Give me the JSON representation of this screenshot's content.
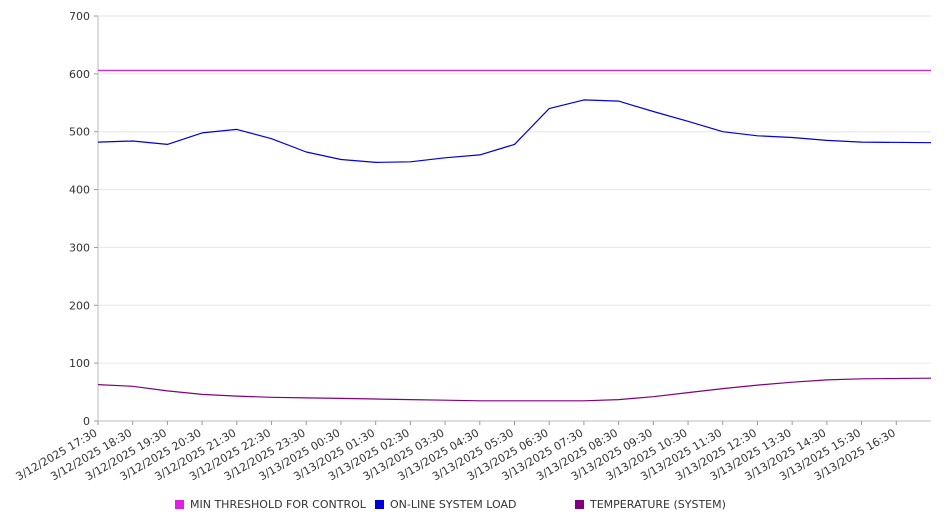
{
  "chart_data": {
    "type": "line",
    "title": "",
    "xlabel": "",
    "ylabel": "",
    "ylim": [
      0,
      700
    ],
    "yticks": [
      0,
      100,
      200,
      300,
      400,
      500,
      600,
      700
    ],
    "grid": true,
    "legend_position": "bottom",
    "x_tick_labels": [
      "3/12/2025 17:30",
      "3/12/2025 18:30",
      "3/12/2025 19:30",
      "3/12/2025 20:30",
      "3/12/2025 21:30",
      "3/12/2025 22:30",
      "3/12/2025 23:30",
      "3/13/2025 00:30",
      "3/13/2025 01:30",
      "3/13/2025 02:30",
      "3/13/2025 03:30",
      "3/13/2025 04:30",
      "3/13/2025 05:30",
      "3/13/2025 06:30",
      "3/13/2025 07:30",
      "3/13/2025 08:30",
      "3/13/2025 09:30",
      "3/13/2025 10:30",
      "3/13/2025 11:30",
      "3/13/2025 12:30",
      "3/13/2025 13:30",
      "3/13/2025 14:30",
      "3/13/2025 15:30",
      "3/13/2025 16:30"
    ],
    "series": [
      {
        "name": "MIN THRESHOLD FOR CONTROL",
        "color": "#e020e0",
        "x": [
          "3/12/2025 17:30",
          "3/13/2025 16:30"
        ],
        "values": [
          606,
          606
        ]
      },
      {
        "name": "ON-LINE SYSTEM LOAD",
        "color": "#0000dd",
        "x": [
          "3/12/2025 17:30",
          "3/12/2025 18:30",
          "3/12/2025 19:30",
          "3/12/2025 20:30",
          "3/12/2025 21:30",
          "3/12/2025 22:30",
          "3/12/2025 23:30",
          "3/13/2025 00:30",
          "3/13/2025 01:30",
          "3/13/2025 02:30",
          "3/13/2025 03:30",
          "3/13/2025 04:30",
          "3/13/2025 05:30",
          "3/13/2025 06:30",
          "3/13/2025 07:30",
          "3/13/2025 08:30",
          "3/13/2025 09:30",
          "3/13/2025 10:30",
          "3/13/2025 11:30",
          "3/13/2025 12:30",
          "3/13/2025 13:30",
          "3/13/2025 14:30",
          "3/13/2025 15:30",
          "3/13/2025 16:30"
        ],
        "values": [
          482,
          484,
          478,
          498,
          504,
          488,
          465,
          452,
          447,
          448,
          455,
          460,
          478,
          540,
          555,
          553,
          535,
          518,
          500,
          493,
          490,
          485,
          482,
          481
        ]
      },
      {
        "name": "TEMPERATURE (SYSTEM)",
        "color": "#800080",
        "x": [
          "3/12/2025 17:30",
          "3/12/2025 18:30",
          "3/12/2025 19:30",
          "3/12/2025 20:30",
          "3/12/2025 21:30",
          "3/12/2025 22:30",
          "3/12/2025 23:30",
          "3/13/2025 00:30",
          "3/13/2025 01:30",
          "3/13/2025 02:30",
          "3/13/2025 03:30",
          "3/13/2025 04:30",
          "3/13/2025 05:30",
          "3/13/2025 06:30",
          "3/13/2025 07:30",
          "3/13/2025 08:30",
          "3/13/2025 09:30",
          "3/13/2025 10:30",
          "3/13/2025 11:30",
          "3/13/2025 12:30",
          "3/13/2025 13:30",
          "3/13/2025 14:30",
          "3/13/2025 15:30",
          "3/13/2025 16:30"
        ],
        "values": [
          63,
          60,
          52,
          46,
          43,
          41,
          40,
          39,
          38,
          37,
          36,
          35,
          35,
          35,
          35,
          37,
          42,
          49,
          56,
          62,
          67,
          71,
          73,
          74
        ]
      }
    ]
  }
}
